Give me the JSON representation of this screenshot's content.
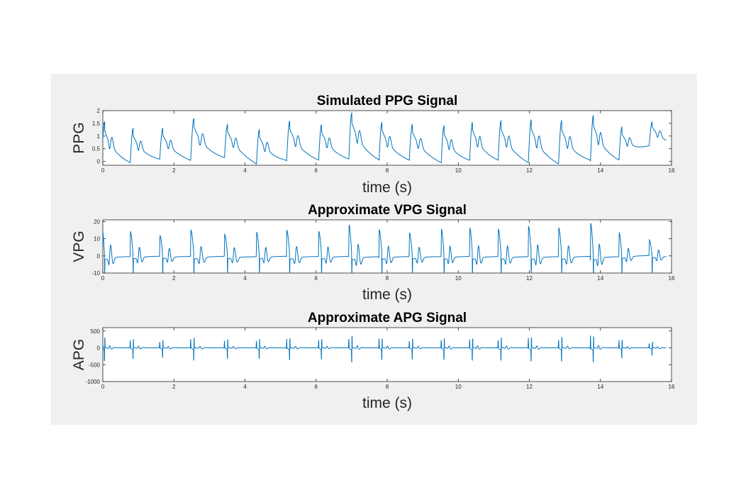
{
  "chart_data": [
    {
      "type": "line",
      "title": "Simulated PPG Signal",
      "xlabel": "time (s)",
      "ylabel": "PPG",
      "xlim": [
        0,
        16
      ],
      "ylim": [
        -0.15,
        2
      ],
      "xticks": [
        0,
        2,
        4,
        6,
        8,
        10,
        12,
        14,
        16
      ],
      "yticks": [
        0,
        0.5,
        1,
        1.5,
        2
      ],
      "ytick_labels": [
        "0",
        "0.5",
        "1",
        "1.5",
        "2"
      ],
      "grid": false,
      "color": "#0072bd",
      "beat_times": [
        0.05,
        0.85,
        1.68,
        2.55,
        3.5,
        4.4,
        5.25,
        6.15,
        7.0,
        7.85,
        8.7,
        9.6,
        10.4,
        11.2,
        12.05,
        12.9,
        13.8,
        14.6,
        15.45
      ],
      "beat_peaks": [
        1.55,
        1.3,
        1.3,
        1.7,
        1.45,
        1.25,
        1.6,
        1.45,
        1.9,
        1.55,
        1.45,
        1.4,
        1.55,
        1.6,
        1.65,
        1.6,
        1.8,
        1.35,
        1.55
      ],
      "beat_troughs": [
        -0.1,
        -0.1,
        0.05,
        0.0,
        0.1,
        -0.15,
        0.0,
        0.0,
        0.05,
        0.0,
        0.0,
        -0.1,
        0.0,
        0.0,
        -0.1,
        -0.15,
        0.0,
        0.0,
        0.6
      ]
    },
    {
      "type": "line",
      "title": "Approximate VPG Signal",
      "xlabel": "time (s)",
      "ylabel": "VPG",
      "xlim": [
        0,
        16
      ],
      "ylim": [
        -10,
        21
      ],
      "xticks": [
        0,
        2,
        4,
        6,
        8,
        10,
        12,
        14,
        16
      ],
      "yticks": [
        -10,
        0,
        10,
        20
      ],
      "ytick_labels": [
        "-10",
        "0",
        "10",
        "20"
      ],
      "grid": false,
      "color": "#0072bd"
    },
    {
      "type": "line",
      "title": "Approximate APG Signal",
      "xlabel": "time (s)",
      "ylabel": "APG",
      "xlim": [
        0,
        16
      ],
      "ylim": [
        -1000,
        600
      ],
      "xticks": [
        0,
        2,
        4,
        6,
        8,
        10,
        12,
        14,
        16
      ],
      "yticks": [
        -1000,
        -500,
        0,
        500
      ],
      "ytick_labels": [
        "-1000",
        "-500",
        "0",
        "500"
      ],
      "grid": false,
      "color": "#0072bd"
    }
  ]
}
